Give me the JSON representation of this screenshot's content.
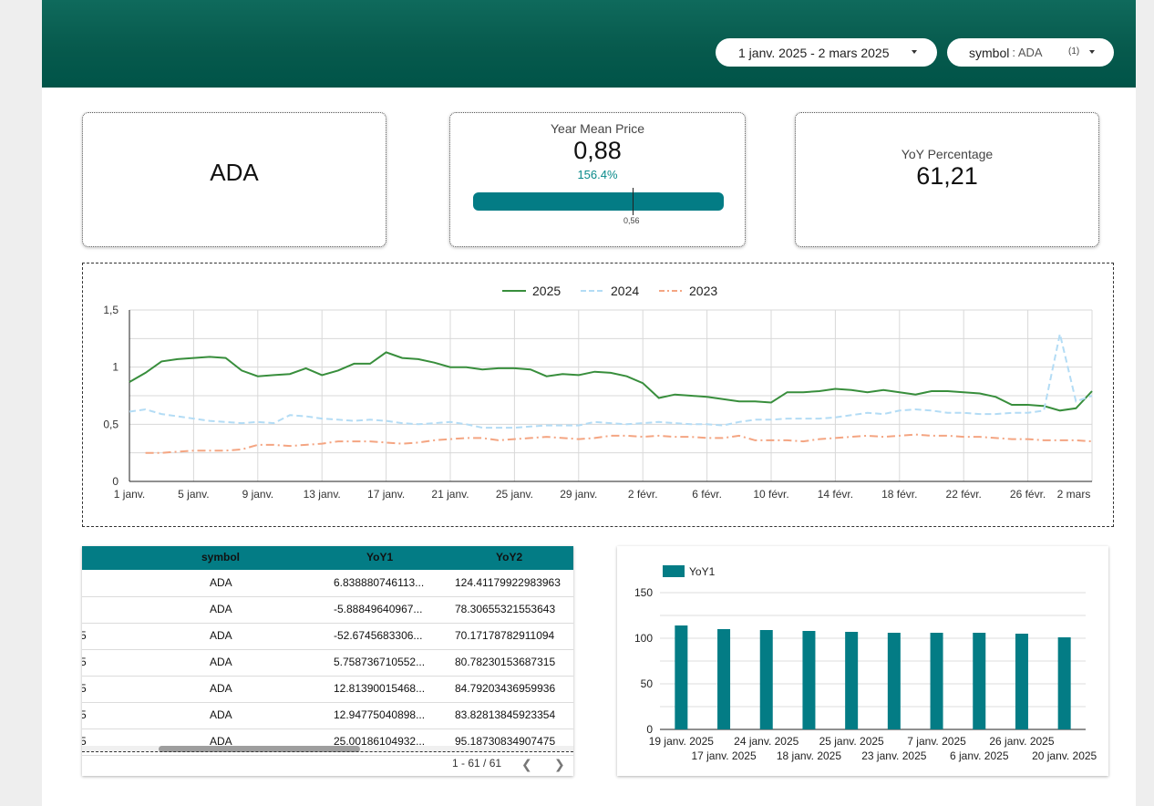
{
  "filters": {
    "date_range": "1 janv. 2025 - 2 mars 2025",
    "symbol_label": "symbol",
    "symbol_value": ": ADA",
    "symbol_count": "(1)"
  },
  "scorecards": {
    "symbol": "ADA",
    "mean_title": "Year Mean Price",
    "mean_value": "0,88",
    "mean_delta": "156.4%",
    "mean_target": "0,56",
    "mean_progress": 1.0,
    "yoy_title": "YoY Percentage",
    "yoy_value": "61,21"
  },
  "colors": {
    "header": "#005448",
    "accent": "#037c85",
    "series_2025": "#388e3c",
    "series_2024": "#b3dcf5",
    "series_2023": "#f4a582"
  },
  "chart_data": [
    {
      "type": "line",
      "legend_position": "top",
      "grid": true,
      "x_tick_labels": [
        "1 janv.",
        "5 janv.",
        "9 janv.",
        "13 janv.",
        "17 janv.",
        "21 janv.",
        "25 janv.",
        "29 janv.",
        "2 févr.",
        "6 févr.",
        "10 févr.",
        "14 févr.",
        "18 févr.",
        "22 févr.",
        "26 févr.",
        "2 mars"
      ],
      "y_tick_labels": [
        "0",
        "0,5",
        "1",
        "1,5"
      ],
      "ylim": [
        0,
        1.5
      ],
      "series": [
        {
          "name": "2025",
          "start_index": 0,
          "values": [
            0.87,
            0.95,
            1.05,
            1.07,
            1.08,
            1.09,
            1.08,
            0.97,
            0.92,
            0.93,
            0.94,
            0.99,
            0.93,
            0.97,
            1.03,
            1.03,
            1.13,
            1.08,
            1.07,
            1.04,
            1.0,
            1.0,
            0.98,
            0.99,
            0.99,
            0.98,
            0.92,
            0.94,
            0.93,
            0.96,
            0.95,
            0.92,
            0.86,
            0.73,
            0.76,
            0.75,
            0.74,
            0.72,
            0.7,
            0.7,
            0.69,
            0.78,
            0.78,
            0.79,
            0.81,
            0.8,
            0.78,
            0.8,
            0.78,
            0.76,
            0.79,
            0.79,
            0.78,
            0.77,
            0.74,
            0.67,
            0.67,
            0.66,
            0.62,
            0.64,
            0.79
          ]
        },
        {
          "name": "2024",
          "start_index": 0,
          "values": [
            0.61,
            0.63,
            0.59,
            0.57,
            0.55,
            0.53,
            0.52,
            0.51,
            0.52,
            0.51,
            0.58,
            0.57,
            0.55,
            0.54,
            0.53,
            0.54,
            0.53,
            0.51,
            0.5,
            0.51,
            0.52,
            0.5,
            0.47,
            0.47,
            0.47,
            0.48,
            0.49,
            0.49,
            0.49,
            0.52,
            0.51,
            0.5,
            0.51,
            0.52,
            0.51,
            0.5,
            0.5,
            0.49,
            0.52,
            0.54,
            0.54,
            0.55,
            0.55,
            0.55,
            0.56,
            0.58,
            0.6,
            0.59,
            0.62,
            0.63,
            0.62,
            0.6,
            0.6,
            0.59,
            0.59,
            0.6,
            0.6,
            0.62,
            1.29,
            0.7,
            0.75
          ]
        },
        {
          "name": "2023",
          "start_index": 1,
          "values": [
            0.25,
            0.25,
            0.26,
            0.27,
            0.27,
            0.27,
            0.28,
            0.32,
            0.32,
            0.31,
            0.32,
            0.33,
            0.35,
            0.35,
            0.35,
            0.34,
            0.33,
            0.34,
            0.36,
            0.37,
            0.38,
            0.38,
            0.36,
            0.37,
            0.38,
            0.39,
            0.38,
            0.37,
            0.38,
            0.4,
            0.4,
            0.39,
            0.4,
            0.39,
            0.39,
            0.38,
            0.38,
            0.4,
            0.36,
            0.36,
            0.36,
            0.35,
            0.37,
            0.38,
            0.39,
            0.4,
            0.39,
            0.4,
            0.41,
            0.4,
            0.4,
            0.39,
            0.39,
            0.38,
            0.37,
            0.37,
            0.36,
            0.36,
            0.36,
            0.35
          ]
        }
      ]
    },
    {
      "type": "bar",
      "legend_position": "top-left",
      "grid": true,
      "series": [
        {
          "name": "YoY1",
          "values": [
            114,
            110,
            109,
            108,
            107,
            106,
            106,
            106,
            105,
            101
          ]
        }
      ],
      "categories": [
        "19 janv. 2025",
        "17 janv. 2025",
        "24 janv. 2025",
        "18 janv. 2025",
        "25 janv. 2025",
        "23 janv. 2025",
        "7 janv. 2025",
        "6 janv. 2025",
        "26 janv. 2025",
        "20 janv. 2025"
      ],
      "y_tick_labels": [
        "0",
        "50",
        "100",
        "150"
      ],
      "ylim": [
        0,
        150
      ]
    }
  ],
  "table": {
    "columns": [
      "symbol",
      "YoY1",
      "YoY2"
    ],
    "rows": [
      {
        "lead": "",
        "symbol": "ADA",
        "yoy1": "6.838880746113...",
        "yoy2": "124.41179922983963"
      },
      {
        "lead": "",
        "symbol": "ADA",
        "yoy1": "-5.88849640967...",
        "yoy2": "78.30655321553643"
      },
      {
        "lead": "5",
        "symbol": "ADA",
        "yoy1": "-52.6745683306...",
        "yoy2": "70.17178782911094"
      },
      {
        "lead": "5",
        "symbol": "ADA",
        "yoy1": "5.758736710552...",
        "yoy2": "80.78230153687315"
      },
      {
        "lead": "5",
        "symbol": "ADA",
        "yoy1": "12.81390015468...",
        "yoy2": "84.79203436959936"
      },
      {
        "lead": "5",
        "symbol": "ADA",
        "yoy1": "12.94775040898...",
        "yoy2": "83.82813845923354"
      },
      {
        "lead": "5",
        "symbol": "ADA",
        "yoy1": "25.00186104932...",
        "yoy2": "95.18730834907475"
      }
    ],
    "pagination": "1 - 61 / 61",
    "prev_icon": "chevron-left-icon",
    "next_icon": "chevron-right-icon"
  }
}
